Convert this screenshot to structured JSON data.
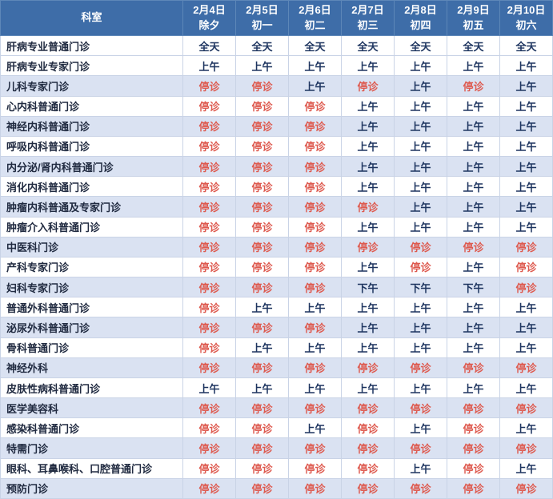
{
  "colors": {
    "header_bg": "#3e6da8",
    "header_border": "#5d87b8",
    "band_bg": "#dae2f2",
    "border": "#c9d3e6",
    "closed_text": "#de5b50",
    "open_text": "#1e3560",
    "dept_text": "#212b41"
  },
  "closed_label": "停诊",
  "header": {
    "dept_label": "科室",
    "dates": [
      {
        "date": "2月4日",
        "day": "除夕"
      },
      {
        "date": "2月5日",
        "day": "初一"
      },
      {
        "date": "2月6日",
        "day": "初二"
      },
      {
        "date": "2月7日",
        "day": "初三"
      },
      {
        "date": "2月8日",
        "day": "初四"
      },
      {
        "date": "2月9日",
        "day": "初五"
      },
      {
        "date": "2月10日",
        "day": "初六"
      }
    ]
  },
  "rows": [
    {
      "dept": "肝病专业普通门诊",
      "cells": [
        "全天",
        "全天",
        "全天",
        "全天",
        "全天",
        "全天",
        "全天"
      ]
    },
    {
      "dept": "肝病专业专家门诊",
      "cells": [
        "上午",
        "上午",
        "上午",
        "上午",
        "上午",
        "上午",
        "上午"
      ]
    },
    {
      "dept": "儿科专家门诊",
      "cells": [
        "停诊",
        "停诊",
        "上午",
        "停诊",
        "上午",
        "停诊",
        "上午"
      ]
    },
    {
      "dept": "心内科普通门诊",
      "cells": [
        "停诊",
        "停诊",
        "停诊",
        "上午",
        "上午",
        "上午",
        "上午"
      ]
    },
    {
      "dept": "神经内科普通门诊",
      "cells": [
        "停诊",
        "停诊",
        "停诊",
        "上午",
        "上午",
        "上午",
        "上午"
      ]
    },
    {
      "dept": "呼吸内科普通门诊",
      "cells": [
        "停诊",
        "停诊",
        "停诊",
        "上午",
        "上午",
        "上午",
        "上午"
      ]
    },
    {
      "dept": "内分泌/肾内科普通门诊",
      "cells": [
        "停诊",
        "停诊",
        "停诊",
        "上午",
        "上午",
        "上午",
        "上午"
      ]
    },
    {
      "dept": "消化内科普通门诊",
      "cells": [
        "停诊",
        "停诊",
        "停诊",
        "上午",
        "上午",
        "上午",
        "上午"
      ]
    },
    {
      "dept": "肿瘤内科普通及专家门诊",
      "cells": [
        "停诊",
        "停诊",
        "停诊",
        "停诊",
        "上午",
        "上午",
        "上午"
      ]
    },
    {
      "dept": "肿瘤介入科普通门诊",
      "cells": [
        "停诊",
        "停诊",
        "停诊",
        "上午",
        "上午",
        "上午",
        "上午"
      ]
    },
    {
      "dept": "中医科门诊",
      "cells": [
        "停诊",
        "停诊",
        "停诊",
        "停诊",
        "停诊",
        "停诊",
        "停诊"
      ]
    },
    {
      "dept": "产科专家门诊",
      "cells": [
        "停诊",
        "停诊",
        "停诊",
        "上午",
        "停诊",
        "上午",
        "停诊"
      ]
    },
    {
      "dept": "妇科专家门诊",
      "cells": [
        "停诊",
        "停诊",
        "停诊",
        "下午",
        "下午",
        "下午",
        "停诊"
      ]
    },
    {
      "dept": "普通外科普通门诊",
      "cells": [
        "停诊",
        "上午",
        "上午",
        "上午",
        "上午",
        "上午",
        "上午"
      ]
    },
    {
      "dept": "泌尿外科普通门诊",
      "cells": [
        "停诊",
        "停诊",
        "停诊",
        "上午",
        "上午",
        "上午",
        "上午"
      ]
    },
    {
      "dept": "骨科普通门诊",
      "cells": [
        "停诊",
        "上午",
        "上午",
        "上午",
        "上午",
        "上午",
        "上午"
      ]
    },
    {
      "dept": "神经外科",
      "cells": [
        "停诊",
        "停诊",
        "停诊",
        "停诊",
        "停诊",
        "停诊",
        "停诊"
      ]
    },
    {
      "dept": "皮肤性病科普通门诊",
      "cells": [
        "上午",
        "上午",
        "上午",
        "上午",
        "上午",
        "上午",
        "上午"
      ]
    },
    {
      "dept": "医学美容科",
      "cells": [
        "停诊",
        "停诊",
        "停诊",
        "停诊",
        "停诊",
        "停诊",
        "停诊"
      ]
    },
    {
      "dept": "感染科普通门诊",
      "cells": [
        "停诊",
        "停诊",
        "上午",
        "停诊",
        "上午",
        "停诊",
        "上午"
      ]
    },
    {
      "dept": "特需门诊",
      "cells": [
        "停诊",
        "停诊",
        "停诊",
        "停诊",
        "停诊",
        "停诊",
        "停诊"
      ]
    },
    {
      "dept": "眼科、耳鼻喉科、口腔普通门诊",
      "cells": [
        "停诊",
        "停诊",
        "停诊",
        "停诊",
        "上午",
        "停诊",
        "上午"
      ]
    },
    {
      "dept": "预防门诊",
      "cells": [
        "停诊",
        "停诊",
        "停诊",
        "停诊",
        "停诊",
        "停诊",
        "停诊"
      ]
    }
  ]
}
